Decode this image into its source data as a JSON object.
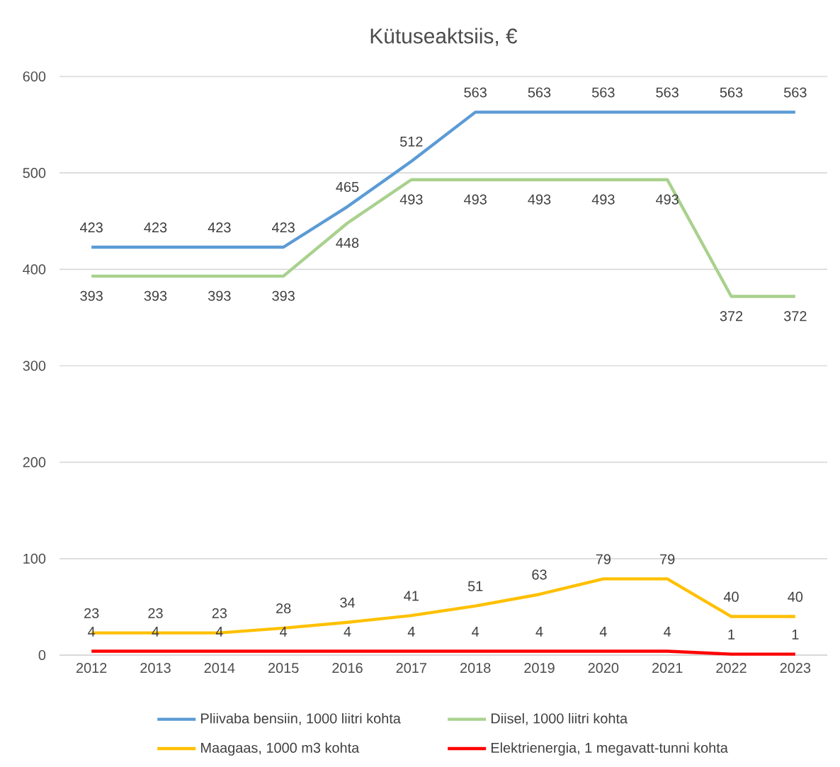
{
  "chart_data": {
    "type": "line",
    "title": "Kütuseaktsiis, €",
    "categories": [
      "2012",
      "2013",
      "2014",
      "2015",
      "2016",
      "2017",
      "2018",
      "2019",
      "2020",
      "2021",
      "2022",
      "2023"
    ],
    "series": [
      {
        "name": "Pliivaba bensiin, 1000 liitri kohta",
        "color": "#5b9bd5",
        "values": [
          423,
          423,
          423,
          423,
          465,
          512,
          563,
          563,
          563,
          563,
          563,
          563
        ]
      },
      {
        "name": "Diisel, 1000 liitri kohta",
        "color": "#a9d18e",
        "values": [
          393,
          393,
          393,
          393,
          448,
          493,
          493,
          493,
          493,
          493,
          372,
          372
        ]
      },
      {
        "name": "Maagaas, 1000 m3 kohta",
        "color": "#ffc000",
        "values": [
          23,
          23,
          23,
          28,
          34,
          41,
          51,
          63,
          79,
          79,
          40,
          40
        ]
      },
      {
        "name": "Elektrienergia, 1 megavatt-tunni kohta",
        "color": "#ff0000",
        "values": [
          4,
          4,
          4,
          4,
          4,
          4,
          4,
          4,
          4,
          4,
          1,
          1
        ]
      }
    ],
    "ylim": [
      0,
      600
    ],
    "yticks": [
      0,
      100,
      200,
      300,
      400,
      500,
      600
    ],
    "grid": "y",
    "legend": "bottom",
    "data_labels": true,
    "marker": "none",
    "line_style": "solid"
  }
}
